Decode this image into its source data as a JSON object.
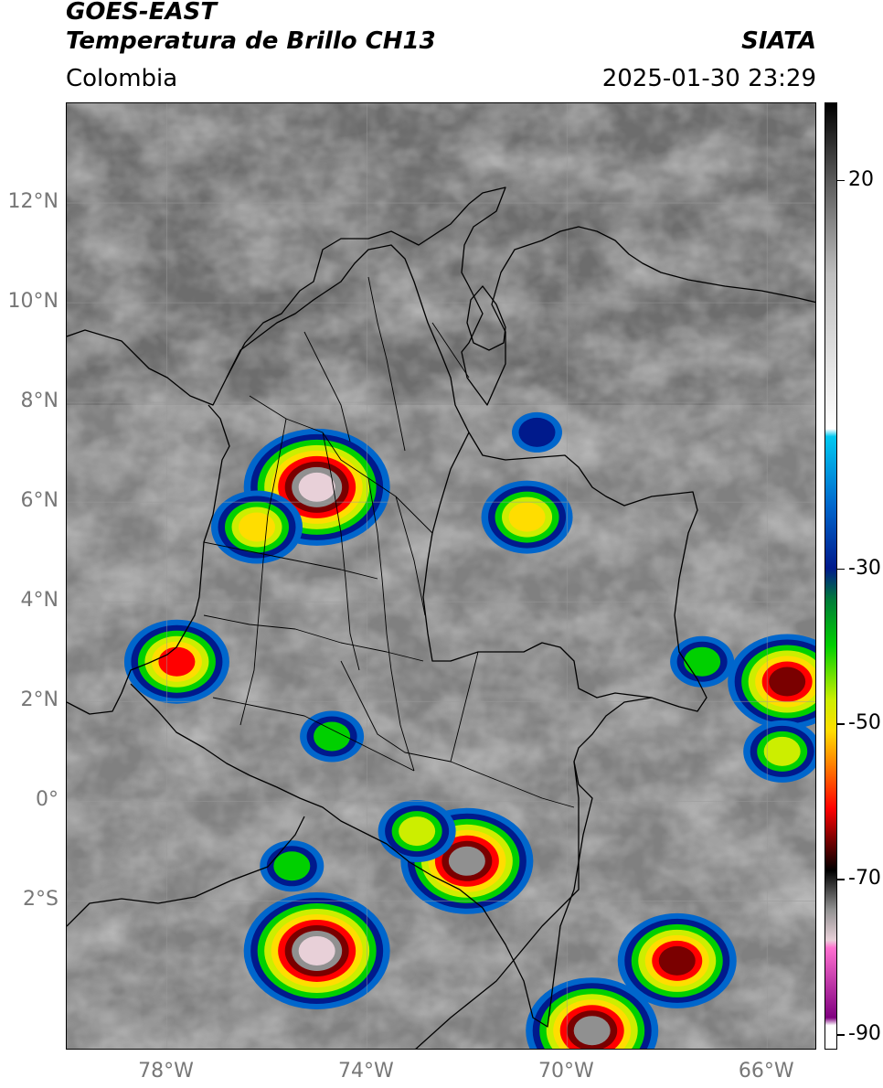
{
  "header": {
    "line1": "GOES-EAST",
    "line2": "Temperatura de Brillo CH13",
    "organization": "SIATA",
    "region": "Colombia",
    "datetime": "2025-01-30 23:29"
  },
  "map": {
    "lon_range": [
      -80,
      -65
    ],
    "lat_range": [
      -5,
      14
    ],
    "lat_ticks": [
      {
        "value": 12,
        "label": "12°N"
      },
      {
        "value": 10,
        "label": "10°N"
      },
      {
        "value": 8,
        "label": "8°N"
      },
      {
        "value": 6,
        "label": "6°N"
      },
      {
        "value": 4,
        "label": "4°N"
      },
      {
        "value": 2,
        "label": "2°N"
      },
      {
        "value": 0,
        "label": "0°"
      },
      {
        "value": -2,
        "label": "2°S"
      }
    ],
    "lon_ticks": [
      {
        "value": -78,
        "label": "78°W"
      },
      {
        "value": -74,
        "label": "74°W"
      },
      {
        "value": -70,
        "label": "70°W"
      },
      {
        "value": -66,
        "label": "66°W"
      }
    ],
    "convective_cells": [
      {
        "lon": -75.0,
        "lat": 6.3,
        "min_temp": -80
      },
      {
        "lon": -76.2,
        "lat": 5.5,
        "min_temp": -55
      },
      {
        "lon": -70.8,
        "lat": 5.7,
        "min_temp": -55
      },
      {
        "lon": -77.8,
        "lat": 2.8,
        "min_temp": -62
      },
      {
        "lon": -65.6,
        "lat": 2.4,
        "min_temp": -68
      },
      {
        "lon": -65.7,
        "lat": 1.0,
        "min_temp": -42
      },
      {
        "lon": -75.5,
        "lat": -1.3,
        "min_temp": -40
      },
      {
        "lon": -72.0,
        "lat": -1.2,
        "min_temp": -72
      },
      {
        "lon": -75.0,
        "lat": -3.0,
        "min_temp": -80
      },
      {
        "lon": -73.0,
        "lat": -0.6,
        "min_temp": -42
      },
      {
        "lon": -67.8,
        "lat": -3.2,
        "min_temp": -68
      },
      {
        "lon": -69.5,
        "lat": -4.6,
        "min_temp": -70
      },
      {
        "lon": -74.7,
        "lat": 1.3,
        "min_temp": -35
      },
      {
        "lon": -67.3,
        "lat": 2.8,
        "min_temp": -38
      },
      {
        "lon": -70.6,
        "lat": 7.4,
        "min_temp": -30
      }
    ]
  },
  "colorbar": {
    "range": [
      -92,
      30
    ],
    "ticks": [
      {
        "value": 20,
        "label": "20"
      },
      {
        "value": -30,
        "label": "-30"
      },
      {
        "value": -50,
        "label": "-50"
      },
      {
        "value": -70,
        "label": "-70"
      },
      {
        "value": -90,
        "label": "-90"
      }
    ],
    "stops": [
      {
        "value": 30,
        "color": "#000000"
      },
      {
        "value": 20,
        "color": "#5a5a5a"
      },
      {
        "value": 8,
        "color": "#bdbdbd"
      },
      {
        "value": -12,
        "color": "#ffffff"
      },
      {
        "value": -13,
        "color": "#00c8f0"
      },
      {
        "value": -22,
        "color": "#0066cc"
      },
      {
        "value": -30,
        "color": "#001a8c"
      },
      {
        "value": -34,
        "color": "#007a3a"
      },
      {
        "value": -40,
        "color": "#00d000"
      },
      {
        "value": -47,
        "color": "#ccee00"
      },
      {
        "value": -51,
        "color": "#ffdd00"
      },
      {
        "value": -55,
        "color": "#ff8800"
      },
      {
        "value": -61,
        "color": "#ff0000"
      },
      {
        "value": -65,
        "color": "#7a0000"
      },
      {
        "value": -69,
        "color": "#000000"
      },
      {
        "value": -74,
        "color": "#909090"
      },
      {
        "value": -78,
        "color": "#e8d0d8"
      },
      {
        "value": -79,
        "color": "#ff70d0"
      },
      {
        "value": -88,
        "color": "#800080"
      },
      {
        "value": -89,
        "color": "#ffffff"
      },
      {
        "value": -92,
        "color": "#ffffff"
      }
    ]
  }
}
